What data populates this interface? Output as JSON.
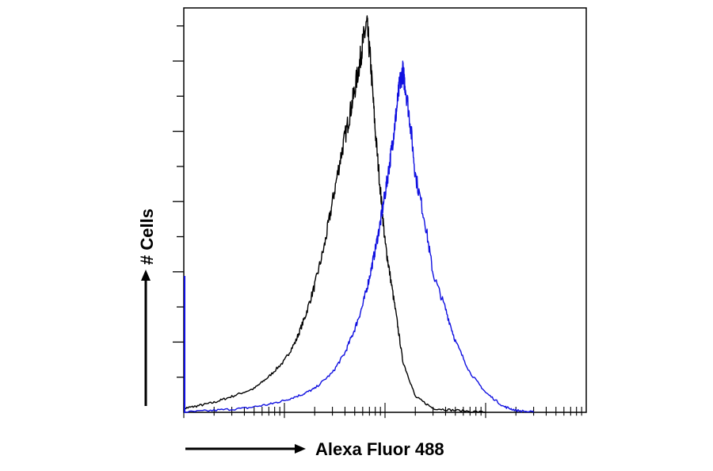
{
  "chart_data": {
    "type": "line",
    "title": "",
    "xlabel": "Alexa Fluor 488",
    "ylabel": "# Cells",
    "x_scale": "log",
    "xlim": [
      1,
      10000
    ],
    "ylim": [
      0,
      100
    ],
    "grid": false,
    "legend": "none",
    "series": [
      {
        "color": "#000000",
        "x": [
          1,
          1.3,
          2,
          3,
          5,
          7,
          10,
          13,
          16,
          20,
          25,
          30,
          36,
          42,
          48,
          55,
          60,
          66,
          72,
          80,
          90,
          100,
          110,
          130,
          150,
          200,
          300,
          500,
          1000
        ],
        "y": [
          1,
          1.5,
          2.5,
          4,
          6,
          9,
          13,
          18,
          24,
          32,
          42,
          53,
          64,
          72,
          79,
          87,
          93,
          98,
          88,
          71,
          56,
          43,
          36,
          24,
          13,
          4,
          1,
          0.5,
          0
        ]
      },
      {
        "color": "#1010e0",
        "x": [
          1,
          2,
          4,
          7,
          10,
          15,
          20,
          30,
          40,
          50,
          60,
          70,
          80,
          90,
          100,
          110,
          120,
          130,
          140,
          150,
          160,
          180,
          200,
          250,
          300,
          400,
          500,
          700,
          1000,
          1500,
          2000,
          3000
        ],
        "y": [
          0,
          0.5,
          1,
          2,
          3,
          4.5,
          6,
          10,
          15,
          21,
          27,
          34,
          41,
          48,
          55,
          62,
          69,
          76,
          83,
          86,
          82,
          72,
          60,
          48,
          35,
          26,
          18,
          10,
          5,
          1.5,
          0.5,
          0
        ]
      }
    ]
  }
}
